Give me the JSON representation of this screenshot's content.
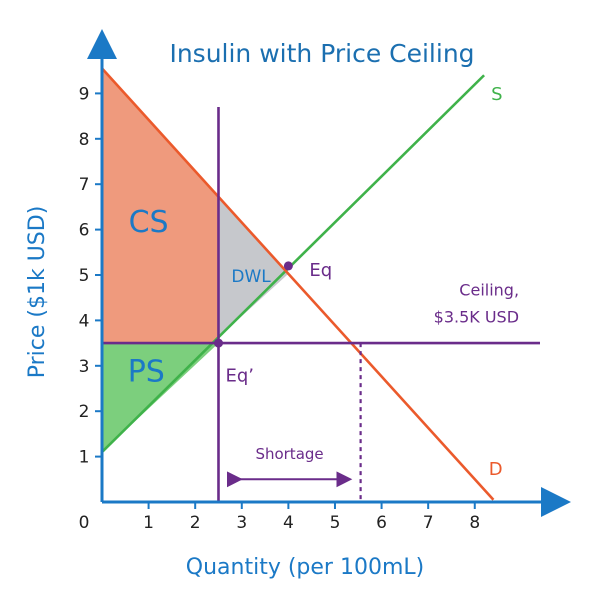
{
  "chart_data": {
    "type": "line",
    "title": "Insulin with Price Ceiling",
    "xlabel": "Quantity (per 100mL)",
    "ylabel": "Price ($1k USD)",
    "xlim": [
      0,
      9.4
    ],
    "ylim": [
      0,
      10
    ],
    "origin_label": "0",
    "x_ticks": [
      "1",
      "2",
      "3",
      "4",
      "5",
      "6",
      "7",
      "8"
    ],
    "y_ticks": [
      "1",
      "2",
      "3",
      "4",
      "5",
      "6",
      "7",
      "8",
      "9"
    ],
    "series": [
      {
        "name": "S",
        "points": [
          [
            0,
            1.1
          ],
          [
            8.2,
            9.4
          ]
        ]
      },
      {
        "name": "D",
        "points": [
          [
            0,
            9.55
          ],
          [
            8.4,
            0.05
          ]
        ]
      }
    ],
    "ceiling": {
      "value": 3.5,
      "label_lines": [
        "Ceiling,",
        "$3.5K USD"
      ]
    },
    "quantity_line_x": 2.5,
    "demand_at_ceiling_x": 5.55,
    "equilibrium": {
      "x": 4.0,
      "y": 5.2,
      "label": "Eq"
    },
    "constrained_point": {
      "x": 2.5,
      "y": 3.5,
      "label": "Eq’"
    },
    "regions": {
      "cs": "CS",
      "ps": "PS",
      "dwl": "DWL"
    },
    "shortage": {
      "label": "Shortage",
      "from": 2.75,
      "to": 5.3
    },
    "colors": {
      "title": "#1b6fb0",
      "axis": "#1b79c6",
      "supply": "#3fb24a",
      "demand": "#eb5a2c",
      "purple": "#6a2c8a",
      "cs_fill": "#ef9a7d",
      "ps_fill": "#7ccf7d",
      "dwl_fill": "#c6c8cc",
      "tick_text": "#222222"
    }
  }
}
